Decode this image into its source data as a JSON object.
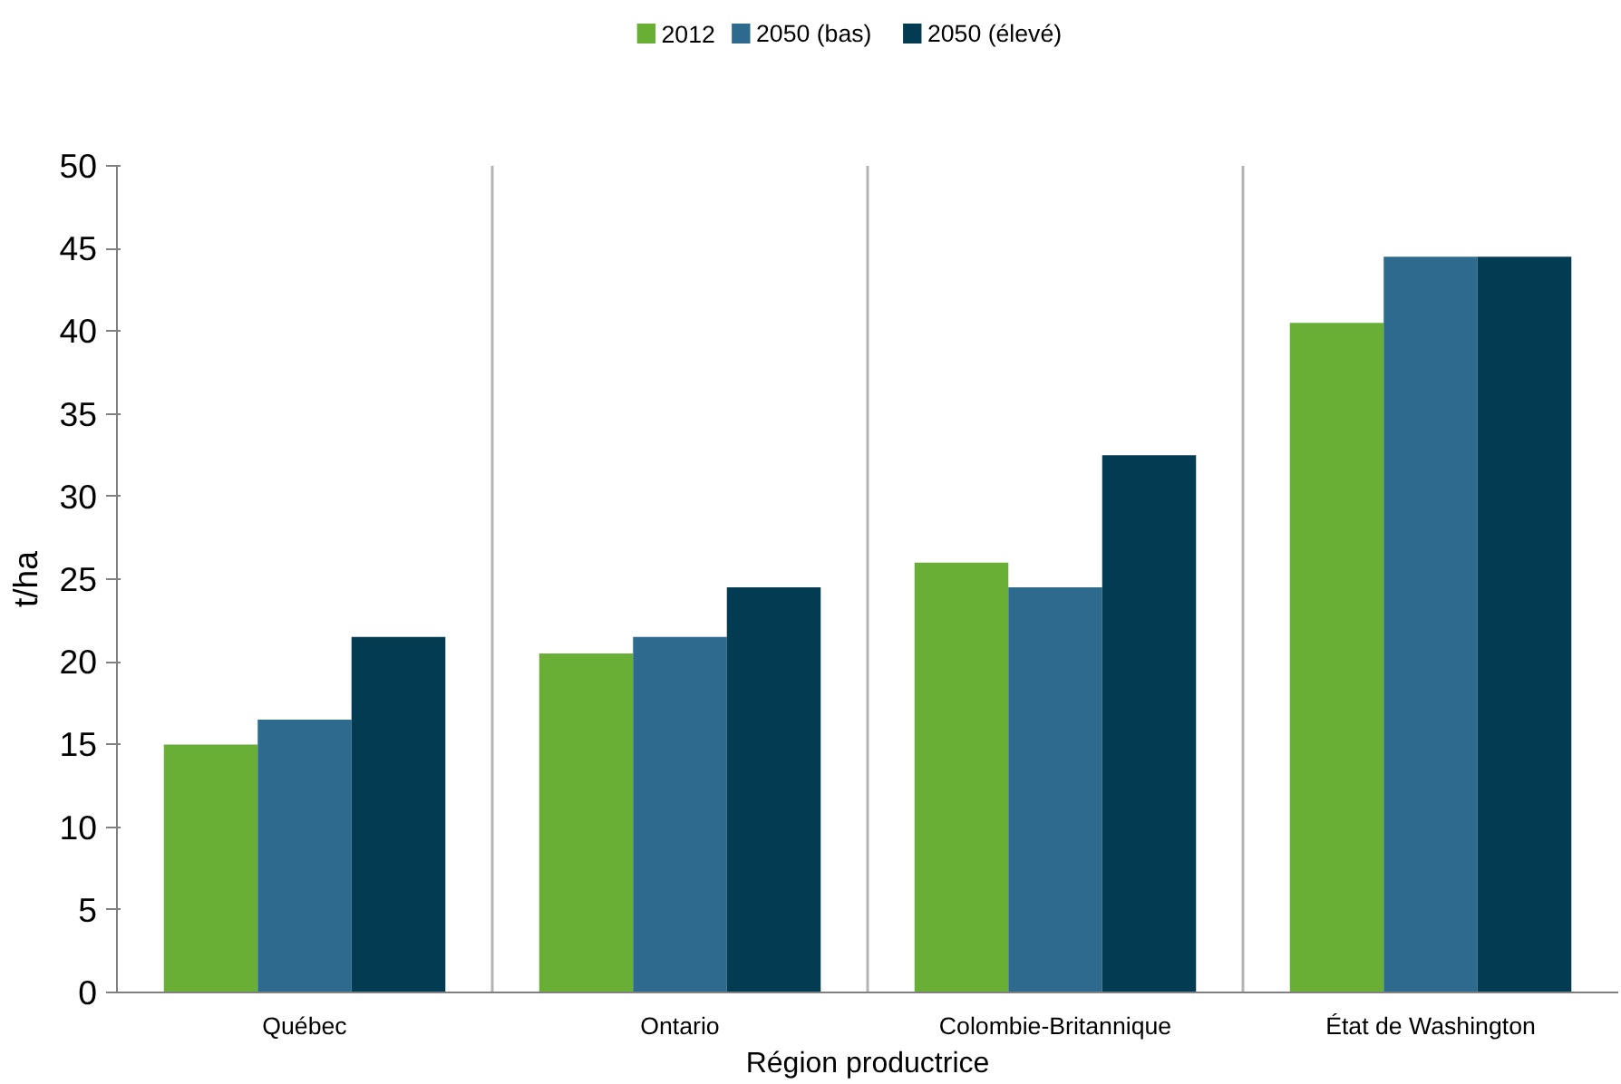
{
  "chart_data": {
    "type": "bar",
    "xlabel": "Région productrice",
    "ylabel": "t/ha",
    "categories": [
      "Québec",
      "Ontario",
      "Colombie-Britannique",
      "État de Washington"
    ],
    "series": [
      {
        "name": "2012",
        "color": "#6aaf35",
        "values": [
          15,
          20.5,
          26,
          40.5
        ]
      },
      {
        "name": "2050 (bas)",
        "color": "#2e6a8e",
        "values": [
          16.5,
          21.5,
          24.5,
          44.5
        ]
      },
      {
        "name": "2050 (élevé)",
        "color": "#033b52",
        "values": [
          21.5,
          24.5,
          32.5,
          44.5
        ]
      }
    ],
    "ylim": [
      0,
      50
    ],
    "yticks": [
      0,
      5,
      10,
      15,
      20,
      25,
      30,
      35,
      40,
      45,
      50
    ],
    "grid": "x",
    "legend": "top"
  }
}
